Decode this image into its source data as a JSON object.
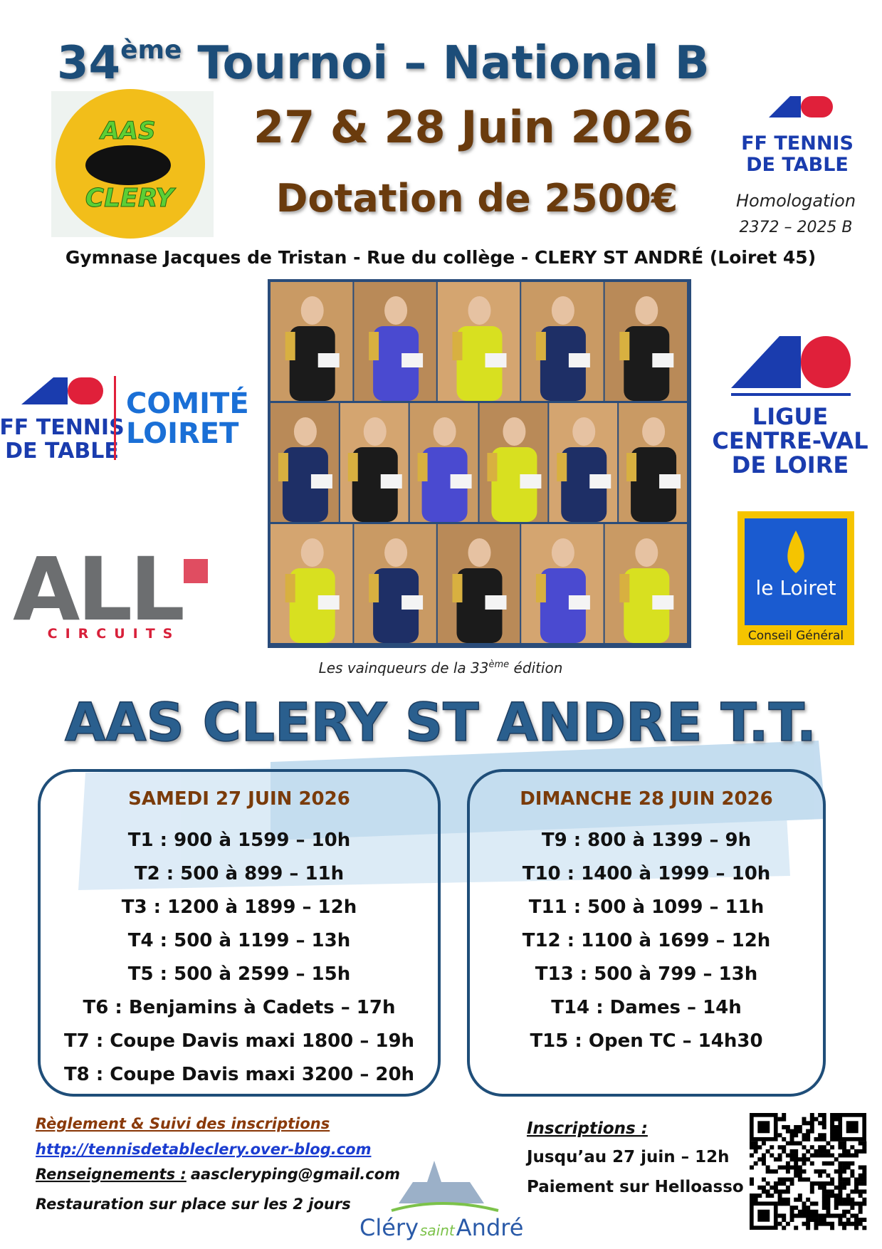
{
  "header": {
    "edition": "34",
    "edition_suffix": "ème",
    "title": "Tournoi – National B",
    "dates": "27 & 28 Juin 2026",
    "prize": "Dotation de 2500€",
    "venue": "Gymnase Jacques de Tristan - Rue du collège - CLERY ST ANDRÉ (Loiret 45)"
  },
  "homologation": {
    "label": "Homologation",
    "number": "2372 – 2025 B"
  },
  "logos": {
    "club": [
      "AAS",
      "CLERY"
    ],
    "fftt": [
      "FF TENNIS",
      "DE TABLE"
    ],
    "comite": [
      "COMITÉ",
      "LOIRET"
    ],
    "ligue": [
      "LIGUE",
      "CENTRE-VAL",
      "DE LOIRE"
    ],
    "sponsor": [
      "ALL",
      "CIRCUITS"
    ],
    "loiret": [
      "le Loiret",
      "Conseil Général"
    ],
    "town": [
      "Cléry",
      "saint",
      "André"
    ]
  },
  "photo_caption": {
    "before": "Les vainqueurs de la ",
    "number": "33",
    "suffix": "ème",
    "after": " édition"
  },
  "club_name": "AAS CLERY ST ANDRE T.T.",
  "schedule": [
    {
      "day": "SAMEDI 27 JUIN 2026",
      "events": [
        "T1 : 900 à 1599 – 10h",
        "T2 : 500 à 899 – 11h",
        "T3 : 1200 à 1899 – 12h",
        "T4 : 500 à 1199 – 13h",
        "T5 : 500 à 2599 – 15h",
        "T6 : Benjamins à Cadets – 17h",
        "T7 : Coupe Davis maxi 1800 – 19h",
        "T8 : Coupe Davis maxi 3200 – 20h"
      ]
    },
    {
      "day": "DIMANCHE 28 JUIN 2026",
      "events": [
        "T9 : 800 à 1399 – 9h",
        "T10 : 1400 à 1999 – 10h",
        "T11 : 500 à 1099 – 11h",
        "T12 : 1100 à 1699 – 12h",
        "T13 : 500 à 799 – 13h",
        "T14 : Dames – 14h",
        "T15 : Open TC – 14h30"
      ]
    }
  ],
  "footer": {
    "rules_label": "Règlement & Suivi des inscriptions",
    "url": "http://tennisdetableclery.over-blog.com",
    "info_label": "Renseignements :",
    "email": "aascleryping@gmail.com",
    "catering": "Restauration sur place sur les 2 jours",
    "registration_title": "Inscriptions :",
    "deadline": "Jusqu’au 27 juin – 12h",
    "payment": "Paiement sur Helloasso :"
  }
}
